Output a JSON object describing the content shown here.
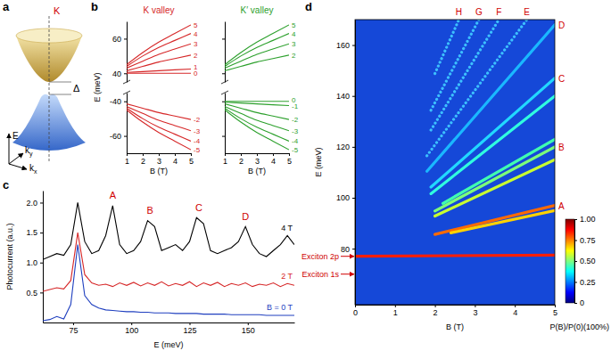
{
  "chart_data": [
    {
      "type": "diagram",
      "panel": "a",
      "labels": {
        "valley": "K",
        "gap": "Δ",
        "energy": "E",
        "ky": "ky",
        "kx": "kx"
      }
    },
    {
      "type": "line",
      "panel": "b",
      "title": "K valley",
      "color": "#d62728",
      "x_label": "B (T)",
      "y_label": "E (meV)",
      "x": [
        1,
        2,
        3,
        4,
        5
      ],
      "xlim": [
        1,
        5
      ],
      "xticks": [
        1,
        2,
        3,
        4,
        5
      ],
      "ylim": [
        -70,
        70
      ],
      "y_break": [
        -35,
        35
      ],
      "yticks": [
        -60,
        -40,
        40,
        60
      ],
      "series": [
        {
          "name": "5",
          "values": [
            45,
            52,
            58,
            63,
            68
          ]
        },
        {
          "name": "4",
          "values": [
            44,
            50,
            55,
            59,
            63
          ]
        },
        {
          "name": "3",
          "values": [
            43,
            47,
            51,
            54,
            57
          ]
        },
        {
          "name": "2",
          "values": [
            41.5,
            44,
            46.5,
            48.5,
            50.5
          ]
        },
        {
          "name": "1",
          "values": [
            40.5,
            41,
            41.5,
            42,
            42.5
          ]
        },
        {
          "name": "0",
          "values": [
            40,
            40,
            40,
            40,
            40
          ]
        },
        {
          "name": "-2",
          "values": [
            -41.5,
            -44,
            -46.5,
            -48.5,
            -50.5
          ]
        },
        {
          "name": "-3",
          "values": [
            -43,
            -47,
            -51,
            -54,
            -57
          ]
        },
        {
          "name": "-4",
          "values": [
            -44,
            -50,
            -55,
            -59,
            -63
          ]
        },
        {
          "name": "-5",
          "values": [
            -45,
            -52,
            -58,
            -63,
            -68
          ]
        }
      ]
    },
    {
      "type": "line",
      "title": "K′ valley",
      "color": "#2ca02c",
      "x_label": "B (T)",
      "tick_labels": "x",
      "x": [
        1,
        2,
        3,
        4,
        5
      ],
      "xlim": [
        1,
        5
      ],
      "xticks": [
        1,
        2,
        3,
        4,
        5
      ],
      "ylim": [
        -70,
        70
      ],
      "y_break": [
        -35,
        35
      ],
      "yticks": [
        -60,
        -40,
        40,
        60
      ],
      "series": [
        {
          "name": "5",
          "values": [
            45,
            52,
            58,
            63,
            68
          ]
        },
        {
          "name": "4",
          "values": [
            44,
            50,
            55,
            59,
            63
          ]
        },
        {
          "name": "3",
          "values": [
            43,
            47,
            51,
            54,
            57
          ]
        },
        {
          "name": "2",
          "values": [
            41.5,
            44,
            46.5,
            48.5,
            50.5
          ]
        },
        {
          "name": "0",
          "values": [
            -40,
            -40,
            -40,
            -40,
            -40
          ]
        },
        {
          "name": "-1",
          "values": [
            -40.5,
            -41,
            -41.5,
            -42,
            -42.5
          ]
        },
        {
          "name": "-2",
          "values": [
            -41.5,
            -44,
            -46.5,
            -48.5,
            -50.5
          ]
        },
        {
          "name": "-3",
          "values": [
            -43,
            -47,
            -51,
            -54,
            -57
          ]
        },
        {
          "name": "-4",
          "values": [
            -44,
            -50,
            -55,
            -59,
            -63
          ]
        },
        {
          "name": "-5",
          "values": [
            -45,
            -52,
            -58,
            -63,
            -68
          ]
        }
      ]
    },
    {
      "type": "line",
      "panel": "c",
      "x_label": "E (meV)",
      "y_label": "Photocurrent (a.u.)",
      "x": [
        62,
        65,
        68,
        71,
        74,
        77,
        80,
        83,
        86,
        89,
        92,
        95,
        98,
        101,
        104,
        107,
        110,
        113,
        116,
        119,
        122,
        125,
        128,
        131,
        134,
        137,
        140,
        143,
        146,
        149,
        152,
        155,
        158,
        161,
        164,
        167,
        170
      ],
      "xlim": [
        62,
        170
      ],
      "xticks": [
        75,
        100,
        125,
        150
      ],
      "ylim": [
        0,
        2.2
      ],
      "yticks": [
        0.5,
        {
          "value": 1,
          "label": "1.0"
        },
        1.5,
        {
          "value": 2,
          "label": "2.0"
        }
      ],
      "series": [
        {
          "name": "B = 0 T",
          "color": "#1f3fbf",
          "values": [
            0.03,
            0.05,
            0.1,
            0.06,
            0.3,
            1.3,
            0.45,
            0.3,
            0.24,
            0.21,
            0.2,
            0.19,
            0.18,
            0.18,
            0.17,
            0.17,
            0.16,
            0.16,
            0.16,
            0.15,
            0.15,
            0.15,
            0.15,
            0.14,
            0.14,
            0.14,
            0.14,
            0.13,
            0.13,
            0.13,
            0.13,
            0.13,
            0.12,
            0.12,
            0.12,
            0.12,
            0.12
          ]
        },
        {
          "name": "2 T",
          "color": "#d62728",
          "values": [
            0.52,
            0.55,
            0.58,
            0.56,
            0.7,
            1.5,
            0.8,
            0.66,
            0.62,
            0.64,
            0.6,
            0.66,
            0.62,
            0.67,
            0.61,
            0.66,
            0.62,
            0.68,
            0.61,
            0.65,
            0.62,
            0.68,
            0.6,
            0.66,
            0.62,
            0.67,
            0.6,
            0.65,
            0.62,
            0.66,
            0.6,
            0.64,
            0.62,
            0.66,
            0.6,
            0.65,
            0.62
          ]
        },
        {
          "name": "4 T",
          "color": "#000000",
          "values": [
            1.05,
            1.1,
            1.15,
            1.12,
            1.3,
            2.0,
            1.35,
            1.15,
            1.2,
            1.45,
            1.95,
            1.3,
            1.15,
            1.2,
            1.35,
            1.7,
            1.6,
            1.2,
            1.25,
            1.3,
            1.2,
            1.35,
            1.75,
            1.65,
            1.2,
            1.15,
            1.2,
            1.25,
            1.35,
            1.6,
            1.3,
            1.15,
            1.1,
            1.2,
            1.3,
            1.45,
            1.3
          ]
        }
      ],
      "annotations": [
        {
          "text": "A",
          "x": 92,
          "y": 2.02
        },
        {
          "text": "B",
          "x": 108,
          "y": 1.77
        },
        {
          "text": "C",
          "x": 129,
          "y": 1.82
        },
        {
          "text": "D",
          "x": 149,
          "y": 1.67
        }
      ]
    },
    {
      "type": "line",
      "panel": "d",
      "x_label": "B (T)",
      "y_label": "E (meV)",
      "xlim": [
        0,
        5
      ],
      "xticks": [
        0,
        1,
        2,
        3,
        4,
        5
      ],
      "ylim": [
        58,
        170
      ],
      "yticks": [
        80,
        100,
        120,
        140,
        160
      ],
      "series": [
        {
          "x": [
            0,
            5
          ],
          "values": [
            77,
            77.5
          ],
          "color": "#ff1e00"
        },
        {
          "name": "A",
          "x": [
            2.0,
            5
          ],
          "values": [
            85.6,
            97
          ],
          "color": "#ff6a00"
        },
        {
          "x": [
            2.4,
            5
          ],
          "values": [
            86.2,
            95
          ],
          "color": "#ffd200"
        },
        {
          "x": [
            2.0,
            5
          ],
          "values": [
            92.8,
            115
          ],
          "color": "#c8ff30"
        },
        {
          "name": "B",
          "x": [
            2.0,
            5
          ],
          "values": [
            94.8,
            120
          ],
          "color": "#7dff7a"
        },
        {
          "x": [
            2.2,
            5
          ],
          "values": [
            97.8,
            123
          ],
          "color": "#40ffb0"
        },
        {
          "x": [
            1.9,
            5
          ],
          "values": [
            101.6,
            140
          ],
          "color": "#30ffe0"
        },
        {
          "name": "C",
          "x": [
            1.9,
            5
          ],
          "values": [
            104.2,
            147
          ],
          "color": "#22d8ff"
        },
        {
          "name": "D",
          "x": [
            1.8,
            5
          ],
          "values": [
            110.4,
            168
          ],
          "color": "#1ab8ff"
        },
        {
          "name": "E",
          "x": [
            1.8,
            4.3
          ],
          "values": [
            116.5,
            170
          ],
          "color": "#3cc0ff",
          "line_style": "dotted"
        },
        {
          "name": "F",
          "x": [
            1.9,
            3.6
          ],
          "values": [
            126.6,
            170
          ],
          "color": "#3cc0ff",
          "line_style": "dotted"
        },
        {
          "name": "G",
          "x": [
            1.9,
            3.1
          ],
          "values": [
            134.4,
            170
          ],
          "color": "#3cc0ff",
          "line_style": "dotted"
        },
        {
          "name": "H",
          "x": [
            2.0,
            2.6
          ],
          "values": [
            148.8,
            170
          ],
          "color": "#3cc0ff",
          "line_style": "dotted"
        }
      ],
      "annotations": [
        {
          "text": "Exciton 2p",
          "y": 77
        },
        {
          "text": "Exciton 1s",
          "y": 70
        }
      ],
      "colorbar": {
        "range": [
          0,
          1
        ],
        "ticks": [
          0,
          0.25,
          {
            "value": 0.5,
            "label": "0.50"
          },
          0.75,
          {
            "value": 1,
            "label": "1.00"
          }
        ],
        "title": "P(B)/P(0)(100%)"
      }
    }
  ]
}
